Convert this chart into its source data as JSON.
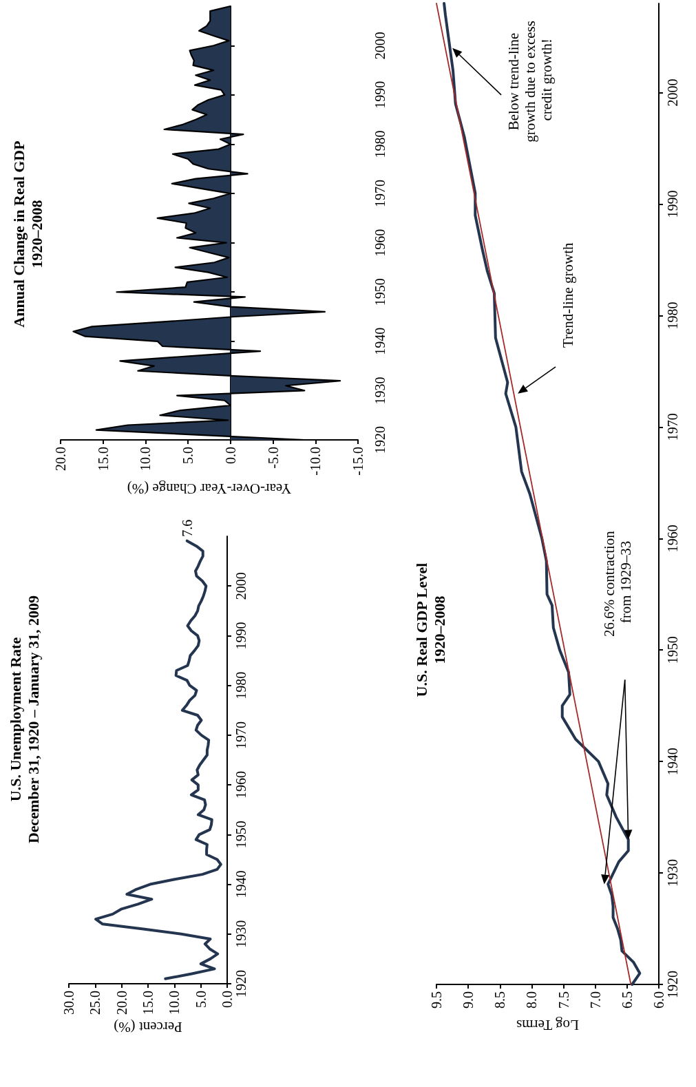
{
  "chart_data": [
    {
      "type": "line",
      "orientation": "horizontal",
      "title": "U.S. Unemployment Rate",
      "subtitle": "December 31, 1920 – January 31, 2009",
      "xlabel": "Percent (%)",
      "color": "#243550",
      "marker": "none",
      "line_style": "solid",
      "grid": false,
      "x": [
        1921,
        1922,
        1923,
        1924,
        1925,
        1926,
        1927,
        1928,
        1929,
        1930,
        1931,
        1932,
        1933,
        1934,
        1935,
        1936,
        1937,
        1938,
        1939,
        1940,
        1941,
        1942,
        1943,
        1944,
        1945,
        1946,
        1947,
        1948,
        1949,
        1950,
        1951,
        1952,
        1953,
        1954,
        1955,
        1956,
        1957,
        1958,
        1959,
        1960,
        1961,
        1962,
        1963,
        1964,
        1965,
        1966,
        1967,
        1968,
        1969,
        1970,
        1971,
        1972,
        1973,
        1974,
        1975,
        1976,
        1977,
        1978,
        1979,
        1980,
        1981,
        1982,
        1983,
        1984,
        1985,
        1986,
        1987,
        1988,
        1989,
        1990,
        1991,
        1992,
        1993,
        1994,
        1995,
        1996,
        1997,
        1998,
        1999,
        2000,
        2001,
        2002,
        2003,
        2004,
        2005,
        2006,
        2007,
        2008,
        2009.08
      ],
      "values": [
        11.7,
        6.7,
        2.4,
        5.0,
        3.2,
        1.8,
        3.3,
        4.2,
        3.2,
        8.7,
        15.9,
        23.6,
        24.9,
        21.7,
        20.1,
        16.9,
        14.3,
        19.0,
        17.2,
        14.6,
        9.9,
        4.7,
        1.9,
        1.2,
        1.9,
        3.9,
        3.9,
        3.8,
        5.9,
        5.3,
        3.3,
        3.0,
        2.9,
        5.5,
        4.4,
        4.1,
        4.3,
        6.8,
        5.5,
        5.5,
        6.7,
        5.5,
        5.7,
        5.2,
        4.5,
        3.8,
        3.8,
        3.6,
        3.5,
        4.9,
        5.9,
        5.6,
        4.9,
        5.6,
        8.5,
        7.7,
        7.1,
        6.1,
        5.8,
        7.1,
        7.6,
        9.7,
        9.6,
        7.5,
        7.2,
        7.0,
        6.2,
        5.5,
        5.3,
        5.6,
        6.8,
        7.5,
        6.9,
        6.1,
        5.6,
        5.4,
        4.9,
        4.5,
        4.2,
        4.0,
        4.7,
        5.8,
        6.0,
        5.5,
        5.1,
        4.6,
        4.6,
        5.8,
        7.6
      ],
      "value_labels": [
        null,
        null,
        null,
        null,
        null,
        null,
        null,
        null,
        null,
        null,
        null,
        null,
        null,
        null,
        null,
        null,
        null,
        null,
        null,
        null,
        null,
        null,
        null,
        null,
        null,
        null,
        null,
        null,
        null,
        null,
        null,
        null,
        null,
        null,
        null,
        null,
        null,
        null,
        null,
        null,
        null,
        null,
        null,
        null,
        null,
        null,
        null,
        null,
        null,
        null,
        null,
        null,
        null,
        null,
        null,
        null,
        null,
        null,
        null,
        null,
        null,
        null,
        null,
        null,
        null,
        null,
        null,
        null,
        null,
        null,
        null,
        null,
        null,
        null,
        null,
        null,
        null,
        null,
        null,
        null,
        null,
        null,
        null,
        null,
        null,
        null,
        null,
        null,
        "7.6"
      ],
      "ylim": [
        1920,
        2010
      ],
      "yticks": [
        1920,
        1930,
        1940,
        1950,
        1960,
        1970,
        1980,
        1990,
        2000
      ],
      "xlim": [
        30,
        0
      ],
      "xticks": [
        {
          "value": 0,
          "label": "0.0"
        },
        {
          "value": 5,
          "label": "5.0"
        },
        {
          "value": 10,
          "label": "10.0"
        },
        {
          "value": 15,
          "label": "15.0"
        },
        {
          "value": 20,
          "label": "20.0"
        },
        {
          "value": 25,
          "label": "25.0"
        },
        {
          "value": 30,
          "label": "30.0"
        }
      ]
    },
    {
      "type": "area",
      "orientation": "horizontal",
      "title": "Annual Change in Real GDP",
      "subtitle": "1920–2008",
      "xlabel": "Year-Over-Year Change (%)",
      "color": "#243550",
      "categories": [
        null,
        null,
        null,
        null,
        null,
        null,
        null,
        null,
        "2000",
        null,
        null,
        null,
        null,
        null,
        null,
        null,
        null,
        null,
        "1990",
        null,
        null,
        null,
        null,
        null,
        null,
        null,
        null,
        null,
        "1980",
        null,
        null,
        null,
        null,
        null,
        null,
        null,
        null,
        null,
        "1970",
        null,
        null,
        null,
        null,
        null,
        null,
        null,
        null,
        null,
        "1960",
        null,
        null,
        null,
        null,
        null,
        null,
        null,
        null,
        null,
        "1950",
        null,
        null,
        null,
        null,
        null,
        null,
        null,
        null,
        null,
        "1940",
        null,
        null,
        null,
        null,
        null,
        null,
        null,
        null,
        null,
        "1930",
        null,
        null,
        null,
        null,
        null,
        null,
        null,
        null,
        null,
        "1920"
      ],
      "values": [
        0.0,
        2.4,
        2.4,
        2.4,
        2.8,
        3.7,
        2.0,
        0.2,
        2.0,
        4.8,
        4.6,
        4.3,
        4.4,
        2.0,
        4.1,
        2.4,
        4.2,
        1.1,
        0.7,
        2.6,
        3.8,
        4.5,
        2.8,
        4.1,
        5.6,
        7.8,
        -1.5,
        1.2,
        0.0,
        1.4,
        6.8,
        5.0,
        4.4,
        2.6,
        -2.0,
        4.1,
        6.9,
        3.5,
        0.0,
        2.0,
        4.9,
        2.4,
        4.3,
        8.6,
        5.2,
        5.3,
        4.1,
        6.3,
        0.5,
        4.8,
        2.5,
        0.2,
        1.9,
        6.5,
        2.6,
        0.4,
        5.1,
        5.3,
        13.4,
        -1.7,
        4.3,
        0.0,
        -11.1,
        -0.5,
        7.6,
        16.3,
        18.5,
        17.1,
        8.6,
        8.0,
        -3.5,
        4.9,
        13.0,
        9.0,
        10.9,
        0.0,
        -12.9,
        -6.5,
        -8.7,
        6.3,
        0.7,
        0.0,
        5.9,
        8.3,
        0.3,
        12.1,
        15.8,
        3.6,
        -8.7
      ],
      "xlim": [
        20,
        -15
      ],
      "xticks": [
        {
          "value": -15,
          "label": "-15.0"
        },
        {
          "value": -10,
          "label": "-10.0"
        },
        {
          "value": -5,
          "label": "-5.0"
        },
        {
          "value": 0,
          "label": "0.0"
        },
        {
          "value": 5,
          "label": "5.0"
        },
        {
          "value": 10,
          "label": "10.0"
        },
        {
          "value": 15,
          "label": "15.0"
        },
        {
          "value": 20,
          "label": "20.0"
        }
      ]
    },
    {
      "type": "line",
      "orientation": "horizontal",
      "title": "U.S. Real GDP Level",
      "subtitle": "1920–2008",
      "xlabel": "Log Terms",
      "marker": "none",
      "line_style": "solid",
      "grid": false,
      "series": [
        {
          "color": "#243550",
          "x": [
            1920,
            1921,
            1922,
            1923,
            1924,
            1925,
            1926,
            1927,
            1928,
            1929,
            1931,
            1932,
            1933,
            1935,
            1937,
            1938,
            1940,
            1942,
            1944,
            1945,
            1946,
            1948,
            1950,
            1952,
            1954,
            1955,
            1958,
            1960,
            1964,
            1966,
            1970,
            1973,
            1974,
            1978,
            1982,
            1984,
            1986,
            1989,
            1991,
            1996,
            1999,
            2002,
            2007,
            2008
          ],
          "values": [
            6.42,
            6.3,
            6.4,
            6.58,
            6.6,
            6.65,
            6.72,
            6.72,
            6.74,
            6.8,
            6.63,
            6.48,
            6.48,
            6.67,
            6.82,
            6.8,
            6.95,
            7.31,
            7.52,
            7.52,
            7.4,
            7.42,
            7.56,
            7.66,
            7.68,
            7.76,
            7.77,
            7.84,
            8.03,
            8.16,
            8.25,
            8.41,
            8.38,
            8.57,
            8.59,
            8.7,
            8.78,
            8.89,
            8.89,
            9.06,
            9.2,
            9.24,
            9.36,
            9.38
          ]
        },
        {
          "type": "line",
          "color": "#a52a2a",
          "x": [
            1920,
            2008
          ],
          "values": [
            6.44,
            9.5
          ]
        }
      ],
      "annotations": [
        "26.6% contraction from 1929–33",
        "Trend-line growth",
        "Below trend-line growth due to excess credit growth!"
      ],
      "ylim": [
        1920,
        2008
      ],
      "yticks": [
        1920,
        1930,
        1940,
        1950,
        1960,
        1970,
        1980,
        1990,
        2000
      ],
      "xlim": [
        9.5,
        6
      ],
      "xticks": [
        {
          "value": 6,
          "label": "6.0"
        },
        {
          "value": 6.5,
          "label": "6.5"
        },
        {
          "value": 7,
          "label": "7.0"
        },
        {
          "value": 7.5,
          "label": "7.5"
        },
        {
          "value": 8,
          "label": "8.0"
        },
        {
          "value": 8.5,
          "label": "8.5"
        },
        {
          "value": 9,
          "label": "9.0"
        },
        {
          "value": 9.5,
          "label": "9.5"
        }
      ]
    }
  ]
}
